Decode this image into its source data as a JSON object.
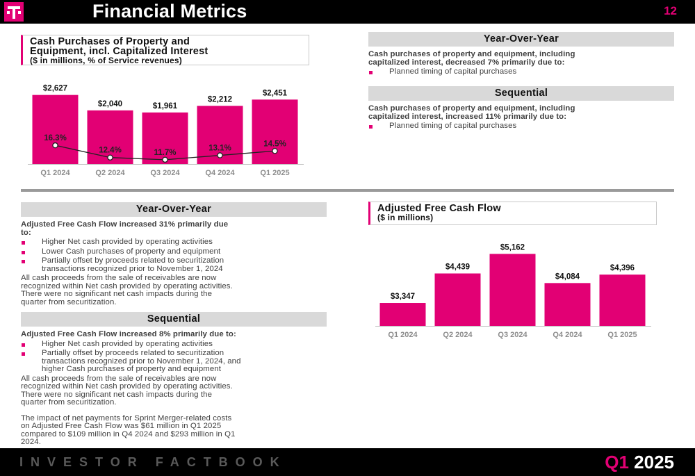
{
  "header": {
    "title": "Financial Metrics",
    "page_number": "12"
  },
  "capex_box": {
    "title_line1": "Cash Purchases of Property and",
    "title_line2": "Equipment, incl. Capitalized Interest",
    "subtitle": "($ in millions, % of Service revenues)"
  },
  "capex_yoy": {
    "heading": "Year-Over-Year",
    "lead_line1": "Cash purchases of property and equipment, including",
    "lead_line2": "capitalized interest, decreased 7% primarily due to:",
    "bullet1": "Planned timing of capital purchases"
  },
  "capex_seq": {
    "heading": "Sequential",
    "lead_line1": "Cash purchases of property and equipment, including",
    "lead_line2": "capitalized interest, increased 11% primarily due to:",
    "bullet1": "Planned timing of capital purchases"
  },
  "fcf_yoy": {
    "heading": "Year-Over-Year",
    "lead_line1": "Adjusted Free Cash Flow increased 31% primarily due",
    "lead_line2": "to:",
    "bullet1": "Higher Net cash provided by operating activities",
    "bullet2": "Lower Cash purchases of property and equipment",
    "bullet3_line1": "Partially offset by proceeds related to securitization",
    "bullet3_line2": "transactions recognized prior to November 1, 2024",
    "note_line1": "All cash proceeds from the sale of receivables are now",
    "note_line2": "recognized within Net cash provided by operating activities.",
    "note_line3": "There were no significant net cash impacts during the",
    "note_line4": "quarter from securitization."
  },
  "fcf_seq": {
    "heading": "Sequential",
    "lead_line1": "Adjusted Free Cash Flow increased 8% primarily due to:",
    "bullet1": "Higher Net cash provided by operating activities",
    "bullet2_line1": "Partially offset by proceeds related to securitization",
    "bullet2_line2": "transactions recognized prior to November 1, 2024, and",
    "bullet2_line3": "higher Cash purchases of property and equipment",
    "note_line1": "All cash proceeds from the sale of receivables are now",
    "note_line2": "recognized within Net cash provided by operating activities.",
    "note_line3": "There were no significant net cash impacts during the",
    "note_line4": "quarter from securitization.",
    "merger_line1": "The impact of net payments for Sprint Merger-related costs",
    "merger_line2": "on Adjusted Free Cash Flow was $61 million in Q1 2025",
    "merger_line3": "compared to $109 million in Q4 2024 and $293 million in Q1",
    "merger_line4": "2024."
  },
  "fcf_box": {
    "title": "Adjusted Free Cash Flow",
    "subtitle": "($ in millions)"
  },
  "footer": {
    "left": "INVESTOR FACTBOOK",
    "quarter": "Q1",
    "year": "2025"
  },
  "colors": {
    "accent": "#e20074",
    "header_bg": "#000000",
    "section_gray": "#d9d9d9"
  },
  "chart_data": [
    {
      "type": "bar",
      "title": "Cash Purchases of Property and Equipment, incl. Capitalized Interest",
      "categories": [
        "Q1 2024",
        "Q2 2024",
        "Q3 2024",
        "Q4 2024",
        "Q1 2025"
      ],
      "values": [
        2627,
        2040,
        1961,
        2212,
        2451
      ],
      "value_labels": [
        "$2,627",
        "$2,040",
        "$1,961",
        "$2,212",
        "$2,451"
      ],
      "line_series": {
        "values": [
          16.3,
          12.4,
          11.7,
          13.1,
          14.5
        ],
        "labels": [
          "16.3%",
          "12.4%",
          "11.7%",
          "13.1%",
          "14.5%"
        ]
      },
      "ylim": [
        0,
        2750
      ],
      "bar_color": "#e20074"
    },
    {
      "type": "bar",
      "title": "Adjusted Free Cash Flow",
      "categories": [
        "Q1 2024",
        "Q2 2024",
        "Q3 2024",
        "Q4 2024",
        "Q1 2025"
      ],
      "values": [
        3347,
        4439,
        5162,
        4084,
        4396
      ],
      "value_labels": [
        "$3,347",
        "$4,439",
        "$5,162",
        "$4,084",
        "$4,396"
      ],
      "ylim": [
        2500,
        5300
      ],
      "bar_color": "#e20074"
    }
  ]
}
